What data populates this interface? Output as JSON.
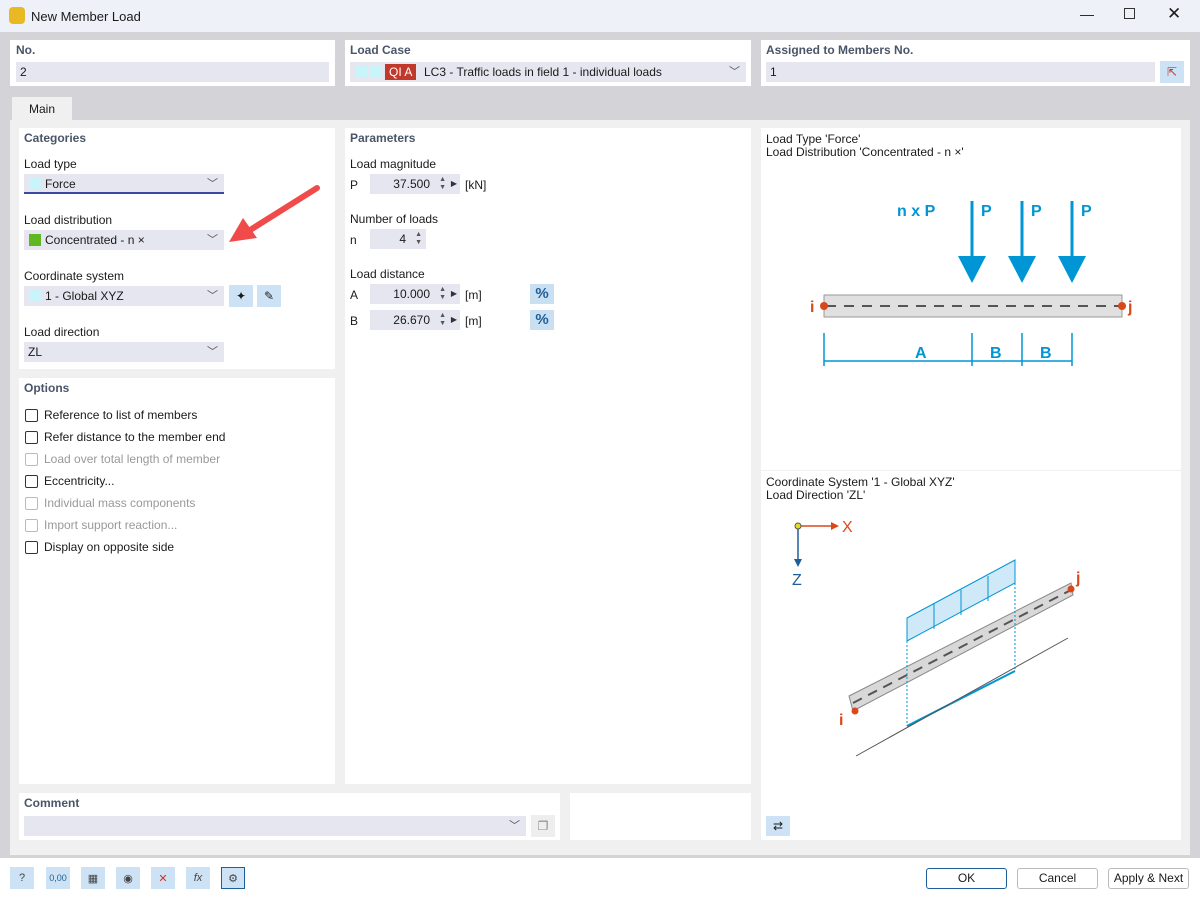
{
  "window": {
    "title": "New Member Load"
  },
  "header": {
    "no_label": "No.",
    "no_value": "2",
    "load_case_label": "Load Case",
    "load_case_badge": "QI A",
    "load_case_value": "LC3 - Traffic loads in field 1 - individual loads",
    "load_case_badge_color": "#c0392b",
    "assigned_label": "Assigned to Members No.",
    "assigned_value": "1"
  },
  "tabs": [
    {
      "label": "Main",
      "active": true
    }
  ],
  "categories": {
    "title": "Categories",
    "load_type_label": "Load type",
    "load_type_value": "Force",
    "load_distribution_label": "Load distribution",
    "load_distribution_value": "Concentrated - n ×",
    "coordinate_system_label": "Coordinate system",
    "coordinate_system_value": "1 - Global XYZ",
    "load_direction_label": "Load direction",
    "load_direction_value": "ZL"
  },
  "options": {
    "title": "Options",
    "items": [
      {
        "label": "Reference to list of members",
        "checked": false,
        "enabled": true
      },
      {
        "label": "Refer distance to the member end",
        "checked": false,
        "enabled": true
      },
      {
        "label": "Load over total length of member",
        "checked": false,
        "enabled": false
      },
      {
        "label": "Eccentricity...",
        "checked": false,
        "enabled": true
      },
      {
        "label": "Individual mass components",
        "checked": false,
        "enabled": false
      },
      {
        "label": "Import support reaction...",
        "checked": false,
        "enabled": false
      },
      {
        "label": "Display on opposite side",
        "checked": false,
        "enabled": true
      }
    ]
  },
  "parameters": {
    "title": "Parameters",
    "magnitude_label": "Load magnitude",
    "p_symbol": "P",
    "p_value": "37.500",
    "p_unit": "[kN]",
    "number_label": "Number of loads",
    "n_symbol": "n",
    "n_value": "4",
    "distance_label": "Load distance",
    "a_symbol": "A",
    "a_value": "10.000",
    "a_unit": "[m]",
    "b_symbol": "B",
    "b_value": "26.670",
    "b_unit": "[m]",
    "pct": "%"
  },
  "diagram1": {
    "line1": "Load Type 'Force'",
    "line2": "Load Distribution 'Concentrated - n ×'",
    "nxp": "n x P",
    "p": "P",
    "i": "i",
    "j": "j",
    "a": "A",
    "b": "B"
  },
  "diagram2": {
    "line1": "Coordinate System '1 - Global XYZ'",
    "line2": "Load Direction 'ZL'",
    "x": "X",
    "z": "Z",
    "i": "i",
    "j": "j"
  },
  "comment": {
    "label": "Comment",
    "value": ""
  },
  "footer": {
    "ok": "OK",
    "cancel": "Cancel",
    "apply_next": "Apply & Next",
    "units_icon_text": "0,00"
  },
  "colors": {
    "accent": "#0096d6",
    "node": "#d9481b",
    "arrow": "#f04a4a"
  }
}
